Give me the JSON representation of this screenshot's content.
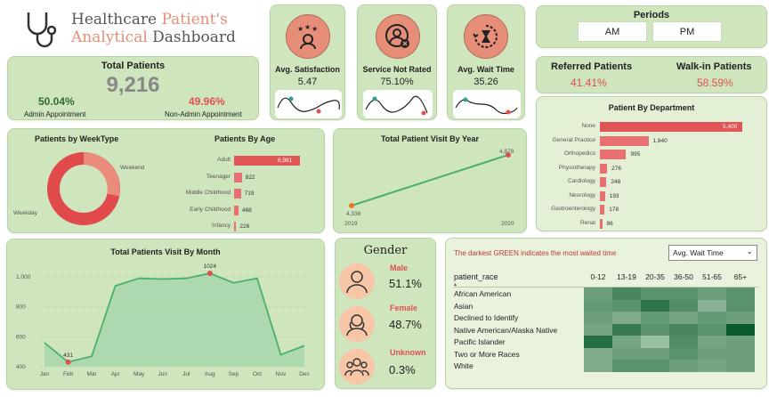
{
  "header": {
    "title_line1_a": "Healthcare ",
    "title_line1_b": "Patient's",
    "title_line2_a": "Analytical ",
    "title_line2_b": "Dashboard"
  },
  "totals": {
    "label": "Total Patients",
    "value": "9,216",
    "admin_pct": "50.04%",
    "admin_label": "Admin Appointment",
    "nonadmin_pct": "49.96%",
    "nonadmin_label": "Non-Admin Appointment"
  },
  "kpis": [
    {
      "label": "Avg. Satisfaction",
      "value": "5.47"
    },
    {
      "label": "Service Not Rated",
      "value": "75.10%"
    },
    {
      "label": "Avg. Wait Time",
      "value": "35.26"
    }
  ],
  "periods": {
    "label": "Periods",
    "am": "AM",
    "pm": "PM"
  },
  "referral": {
    "referred_label": "Referred Patients",
    "referred_value": "41.41%",
    "walkin_label": "Walk-in Patients",
    "walkin_value": "58.59%"
  },
  "weektype": {
    "title": "Patients by WeekType",
    "weekend": "Weekend",
    "weekday": "Weekday"
  },
  "age": {
    "title": "Patients By Age",
    "items": [
      {
        "label": "Adult",
        "value": "6,981",
        "n": 6981
      },
      {
        "label": "Teenager",
        "value": "822",
        "n": 822
      },
      {
        "label": "Middle Childhood",
        "value": "719",
        "n": 719
      },
      {
        "label": "Early Childhood",
        "value": "468",
        "n": 468
      },
      {
        "label": "Infancy",
        "value": "226",
        "n": 226
      }
    ]
  },
  "year": {
    "title": "Total Patient Visit By Year",
    "v2019": "4,338",
    "v2020": "4,878",
    "x2019": "2019",
    "x2020": "2020"
  },
  "department": {
    "title": "Patient By Department",
    "items": [
      {
        "label": "None",
        "value": "5,400",
        "n": 5400
      },
      {
        "label": "General Practice",
        "value": "1,840",
        "n": 1840
      },
      {
        "label": "Orthopedics",
        "value": "995",
        "n": 995
      },
      {
        "label": "Physiotherapy",
        "value": "276",
        "n": 276
      },
      {
        "label": "Cardiology",
        "value": "248",
        "n": 248
      },
      {
        "label": "Neurology",
        "value": "193",
        "n": 193
      },
      {
        "label": "Gastroenterology",
        "value": "178",
        "n": 178
      },
      {
        "label": "Renal",
        "value": "86",
        "n": 86
      }
    ]
  },
  "month": {
    "title": "Total Patients Visit By Month",
    "months": [
      "Jan",
      "Feb",
      "Mar",
      "Apr",
      "May",
      "Jun",
      "Jul",
      "Aug",
      "Sep",
      "Oct",
      "Nov",
      "Dec"
    ],
    "values": [
      560,
      431,
      470,
      940,
      990,
      985,
      990,
      1024,
      960,
      990,
      480,
      540
    ],
    "ticks": [
      "1,000",
      "800",
      "600",
      "400"
    ],
    "max_label": "1024",
    "min_label": "431"
  },
  "gender": {
    "title": "Gender",
    "items": [
      {
        "label": "Male",
        "value": "51.1%"
      },
      {
        "label": "Female",
        "value": "48.7%"
      },
      {
        "label": "Unknown",
        "value": "0.3%"
      }
    ]
  },
  "heatmap": {
    "caption": "The darkest GREEN indicates the most waited time",
    "dropdown": "Avg. Wait Time",
    "row_header": "patient_race",
    "cols": [
      "0-12",
      "13-19",
      "20-35",
      "36-50",
      "51-65",
      "65+"
    ],
    "rows": [
      "African American",
      "Asian",
      "Declined to Identify",
      "Native American/Alaska Native",
      "Pacific Islander",
      "Two or More Races",
      "White"
    ],
    "levels": [
      [
        0.45,
        0.65,
        0.55,
        0.55,
        0.45,
        0.55
      ],
      [
        0.5,
        0.55,
        0.8,
        0.6,
        0.3,
        0.55
      ],
      [
        0.45,
        0.35,
        0.5,
        0.4,
        0.5,
        0.45
      ],
      [
        0.4,
        0.75,
        0.55,
        0.65,
        0.55,
        1.0
      ],
      [
        0.85,
        0.4,
        0.2,
        0.6,
        0.4,
        0.45
      ],
      [
        0.35,
        0.45,
        0.45,
        0.55,
        0.45,
        0.45
      ],
      [
        0.35,
        0.55,
        0.55,
        0.45,
        0.4,
        0.45
      ]
    ]
  },
  "colors": {
    "card_bg": "#cfe5bd",
    "accent_red": "#e0504f",
    "bar": "#e87070",
    "green_line": "#4caf72"
  }
}
